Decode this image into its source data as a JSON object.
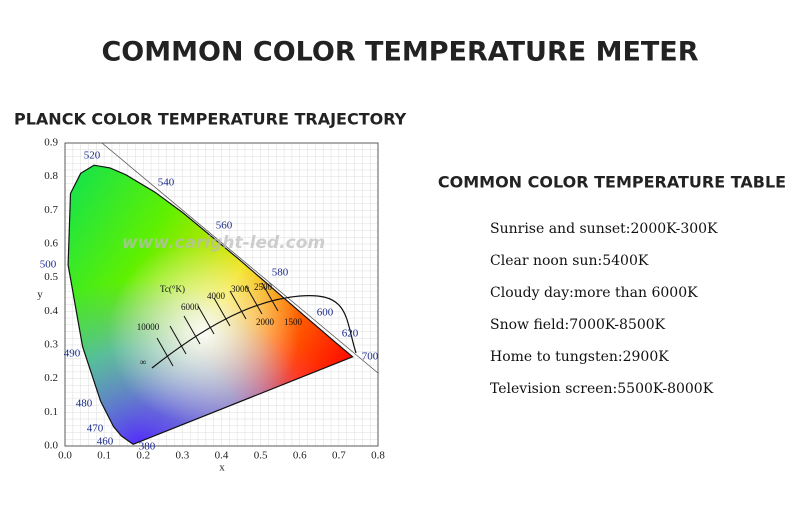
{
  "title": "COMMON COLOR TEMPERATURE METER",
  "diagram": {
    "title": "PLANCK COLOR TEMPERATURE TRAJECTORY",
    "x_label": "x",
    "y_label": "y",
    "xticks": [
      "0.0",
      "0.1",
      "0.2",
      "0.3",
      "0.4",
      "0.5",
      "0.6",
      "0.7",
      "0.8"
    ],
    "yticks": [
      "0.0",
      "0.1",
      "0.2",
      "0.3",
      "0.4",
      "0.5",
      "0.6",
      "0.7",
      "0.8",
      "0.9"
    ],
    "wavelengths": [
      "520",
      "540",
      "560",
      "580",
      "600",
      "620",
      "700",
      "500",
      "490",
      "480",
      "470",
      "460",
      "380"
    ],
    "watermark": "www.caright-led.com",
    "tc_label": "Tc(°K)",
    "temperatures": [
      "10000",
      "6000",
      "4000",
      "3000",
      "2500",
      "2000",
      "1500",
      "∞"
    ]
  },
  "table": {
    "title": "COMMON COLOR TEMPERATURE TABLE",
    "rows": [
      "Sunrise and sunset:2000K-300K",
      "Clear noon sun:5400K",
      "Cloudy day:more than 6000K",
      "Snow field:7000K-8500K",
      "Home to tungsten:2900K",
      "Television screen:5500K-8000K"
    ]
  }
}
